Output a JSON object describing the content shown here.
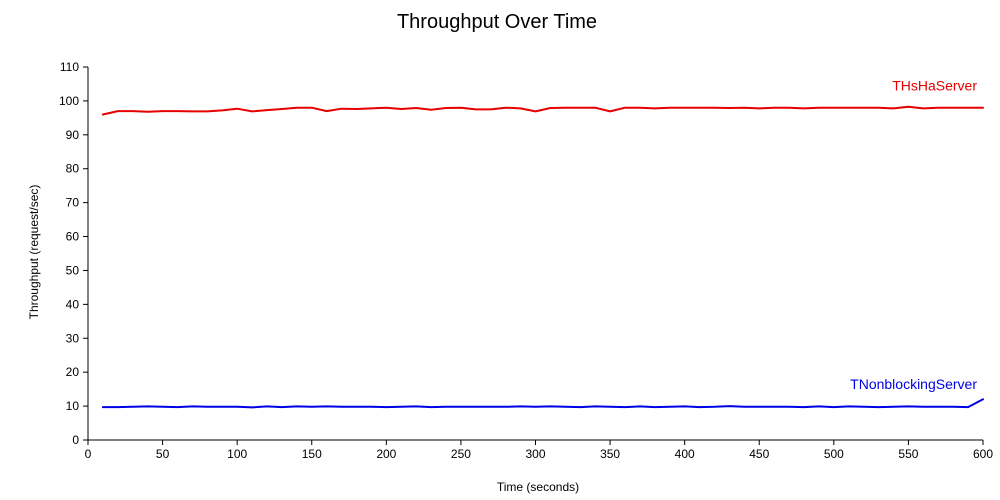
{
  "chart_data": {
    "type": "line",
    "title": "Throughput Over Time",
    "xlabel": "Time (seconds)",
    "ylabel": "Throughput (request/sec)",
    "xlim": [
      0,
      600
    ],
    "ylim": [
      0,
      110
    ],
    "xticks": [
      0,
      50,
      100,
      150,
      200,
      250,
      300,
      350,
      400,
      450,
      500,
      550,
      600
    ],
    "yticks": [
      0,
      10,
      20,
      30,
      40,
      50,
      60,
      70,
      80,
      90,
      100,
      110
    ],
    "grid": false,
    "legend": "inline-right",
    "x": [
      10,
      20,
      30,
      40,
      50,
      60,
      70,
      80,
      90,
      100,
      110,
      120,
      130,
      140,
      150,
      160,
      170,
      180,
      190,
      200,
      210,
      220,
      230,
      240,
      250,
      260,
      270,
      280,
      290,
      300,
      310,
      320,
      330,
      340,
      350,
      360,
      370,
      380,
      390,
      400,
      410,
      420,
      430,
      440,
      450,
      460,
      470,
      480,
      490,
      500,
      510,
      520,
      530,
      540,
      550,
      560,
      570,
      580,
      590,
      600
    ],
    "series": [
      {
        "name": "THsHaServer",
        "color": "#e60000",
        "values": [
          96,
          97,
          97,
          96.8,
          97,
          97,
          96.9,
          96.9,
          97.2,
          97.7,
          96.9,
          97.3,
          97.6,
          98,
          98,
          97,
          97.7,
          97.6,
          97.8,
          98,
          97.6,
          97.9,
          97.4,
          97.9,
          98,
          97.5,
          97.5,
          98,
          97.8,
          96.9,
          97.9,
          98,
          98,
          98,
          96.9,
          98,
          98,
          97.8,
          98,
          98,
          98,
          98,
          97.9,
          98,
          97.8,
          98,
          98,
          97.8,
          98,
          98,
          98,
          98,
          98,
          97.8,
          98.3,
          97.8,
          98,
          98,
          98,
          98
        ]
      },
      {
        "name": "TNonblockingServer",
        "color": "#0000e6",
        "values": [
          9.7,
          9.7,
          9.8,
          9.9,
          9.8,
          9.7,
          9.9,
          9.8,
          9.8,
          9.8,
          9.6,
          9.9,
          9.7,
          9.9,
          9.8,
          9.9,
          9.8,
          9.8,
          9.8,
          9.7,
          9.8,
          9.9,
          9.7,
          9.8,
          9.8,
          9.8,
          9.8,
          9.8,
          9.9,
          9.8,
          9.9,
          9.8,
          9.7,
          9.9,
          9.8,
          9.7,
          9.9,
          9.7,
          9.8,
          9.9,
          9.7,
          9.8,
          10,
          9.8,
          9.8,
          9.8,
          9.8,
          9.7,
          9.9,
          9.7,
          9.9,
          9.8,
          9.7,
          9.8,
          9.9,
          9.8,
          9.8,
          9.8,
          9.7,
          12
        ]
      }
    ]
  }
}
